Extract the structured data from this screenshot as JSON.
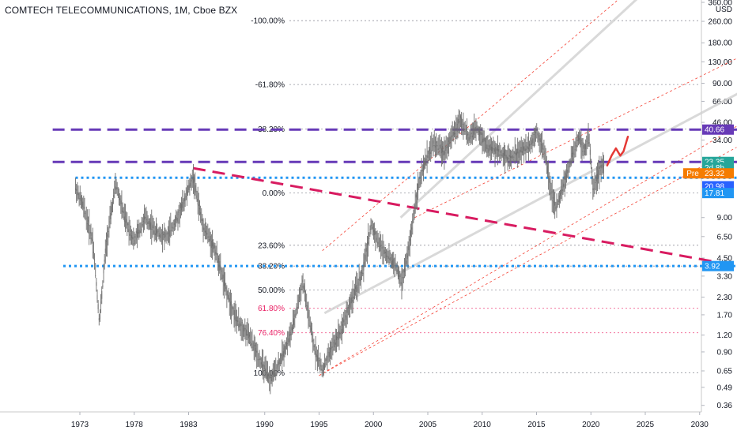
{
  "header": {
    "title": "COMTECH TELECOMMUNICATIONS, 1M, Cboe BZX"
  },
  "colors": {
    "candle": "#6f6f6f",
    "purple": "#673ab7",
    "blue": "#2196f3",
    "crimson": "#d81b60",
    "channel": "#f44336",
    "regression": "#d0d0d0",
    "arrow": "#e53935",
    "fib_neutral": "#787b86",
    "fib_red": "#e91e63"
  },
  "chart_data": {
    "type": "line",
    "title": "COMTECH TELECOMMUNICATIONS, 1M, Cboe BZX",
    "xlabel": "",
    "ylabel": "",
    "y_unit": "USD",
    "y_scale": "log",
    "xlim": [
      1970.5,
      2033.6
    ],
    "ylim": [
      0.36,
      360
    ],
    "x_ticks": [
      {
        "label": "1973",
        "value": 1973
      },
      {
        "label": "1978",
        "value": 1978
      },
      {
        "label": "1983",
        "value": 1983
      },
      {
        "label": "1990",
        "value": 1990
      },
      {
        "label": "1995",
        "value": 1995
      },
      {
        "label": "2000",
        "value": 2000
      },
      {
        "label": "2005",
        "value": 2005
      },
      {
        "label": "2010",
        "value": 2010
      },
      {
        "label": "2015",
        "value": 2015
      },
      {
        "label": "2020",
        "value": 2020
      },
      {
        "label": "2025",
        "value": 2025
      },
      {
        "label": "2030",
        "value": 2030
      }
    ],
    "y_ticks": [
      {
        "label": "360.00",
        "value": 360
      },
      {
        "label": "260.00",
        "value": 260
      },
      {
        "label": "180.00",
        "value": 180
      },
      {
        "label": "130.00",
        "value": 130
      },
      {
        "label": "90.00",
        "value": 90
      },
      {
        "label": "66.00",
        "value": 66
      },
      {
        "label": "46.00",
        "value": 46
      },
      {
        "label": "34.00",
        "value": 34
      },
      {
        "label": "9.00",
        "value": 9
      },
      {
        "label": "6.50",
        "value": 6.5
      },
      {
        "label": "4.50",
        "value": 4.5
      },
      {
        "label": "3.30",
        "value": 3.3
      },
      {
        "label": "2.30",
        "value": 2.3
      },
      {
        "label": "1.70",
        "value": 1.7
      },
      {
        "label": "1.20",
        "value": 1.2
      },
      {
        "label": "0.90",
        "value": 0.9
      },
      {
        "label": "0.65",
        "value": 0.65
      },
      {
        "label": "0.49",
        "value": 0.49
      },
      {
        "label": "0.36",
        "value": 0.36
      }
    ],
    "price_path": [
      [
        1972.6,
        15
      ],
      [
        1973.3,
        11
      ],
      [
        1974.2,
        6
      ],
      [
        1974.8,
        1.5
      ],
      [
        1975.4,
        5.5
      ],
      [
        1976.3,
        16
      ],
      [
        1977.1,
        9
      ],
      [
        1978.0,
        6
      ],
      [
        1979.0,
        9
      ],
      [
        1980.0,
        7
      ],
      [
        1981.0,
        6.5
      ],
      [
        1982.0,
        9
      ],
      [
        1983.4,
        18
      ],
      [
        1984.3,
        8
      ],
      [
        1985.5,
        5
      ],
      [
        1986.5,
        2.5
      ],
      [
        1987.5,
        1.5
      ],
      [
        1988.5,
        1.2
      ],
      [
        1989.5,
        0.8
      ],
      [
        1990.5,
        0.55
      ],
      [
        1991.5,
        0.8
      ],
      [
        1992.5,
        1.3
      ],
      [
        1993.5,
        3.0
      ],
      [
        1994.5,
        1.0
      ],
      [
        1995.3,
        0.65
      ],
      [
        1996.0,
        0.9
      ],
      [
        1997.0,
        1.3
      ],
      [
        1998.0,
        2.2
      ],
      [
        1999.0,
        3.5
      ],
      [
        1999.8,
        8.0
      ],
      [
        2000.4,
        6.0
      ],
      [
        2001.0,
        5.0
      ],
      [
        2002.0,
        4.0
      ],
      [
        2002.6,
        2.9
      ],
      [
        2003.3,
        5.5
      ],
      [
        2004.0,
        14
      ],
      [
        2004.8,
        24
      ],
      [
        2005.5,
        32
      ],
      [
        2006.5,
        28
      ],
      [
        2007.5,
        40
      ],
      [
        2008.0,
        48
      ],
      [
        2008.8,
        35
      ],
      [
        2009.5,
        42
      ],
      [
        2010.5,
        30
      ],
      [
        2011.5,
        28
      ],
      [
        2012.5,
        25
      ],
      [
        2013.5,
        28
      ],
      [
        2014.5,
        32
      ],
      [
        2015.0,
        40
      ],
      [
        2015.8,
        26
      ],
      [
        2016.5,
        12
      ],
      [
        2016.8,
        10.5
      ],
      [
        2017.5,
        16
      ],
      [
        2018.3,
        26
      ],
      [
        2018.9,
        36
      ],
      [
        2019.4,
        28
      ],
      [
        2019.8,
        36
      ],
      [
        2020.2,
        15
      ],
      [
        2020.8,
        20
      ],
      [
        2021.2,
        23.3
      ]
    ],
    "projection": [
      [
        2021.5,
        22
      ],
      [
        2021.9,
        26
      ],
      [
        2022.3,
        29.5
      ],
      [
        2022.7,
        26
      ],
      [
        2023.0,
        28
      ],
      [
        2023.4,
        36
      ]
    ],
    "horizontal_levels": [
      {
        "value": 40.66,
        "style": "dashed",
        "color": "purple",
        "x_from": 1970.5,
        "x_to": 2033.6
      },
      {
        "value": 23.35,
        "style": "dashed",
        "color": "purple",
        "x_from": 1970.5,
        "x_to": 2033.6
      },
      {
        "value": 17.81,
        "style": "dotted",
        "color": "blue",
        "x_from": 1972.6,
        "x_to": 2033.6
      },
      {
        "value": 3.92,
        "style": "dotted",
        "color": "blue",
        "x_from": 1968.3,
        "x_to": 2033.6
      }
    ],
    "trendlines": [
      {
        "name": "descending",
        "from": [
          1983.4,
          21
        ],
        "to": [
          2033.4,
          3.95
        ],
        "color": "crimson",
        "style": "dashed"
      }
    ],
    "fib_levels": [
      {
        "label": "-100.00%",
        "value": 263,
        "color": "neutral"
      },
      {
        "label": "-61.80%",
        "value": 88,
        "color": "neutral"
      },
      {
        "label": "-38.20%",
        "value": 41,
        "color": "neutral"
      },
      {
        "label": "0.00%",
        "value": 13.7,
        "color": "neutral"
      },
      {
        "label": "23.60%",
        "value": 5.6,
        "color": "neutral"
      },
      {
        "label": "38.20%",
        "value": 3.92,
        "color": "neutral"
      },
      {
        "label": "50.00%",
        "value": 2.6,
        "color": "neutral"
      },
      {
        "label": "61.80%",
        "value": 1.9,
        "color": "red"
      },
      {
        "label": "76.40%",
        "value": 1.25,
        "color": "red"
      },
      {
        "label": "100.00%",
        "value": 0.63,
        "color": "neutral"
      }
    ],
    "price_badges": [
      {
        "label": "40.66",
        "value": 40.66,
        "bg": "#673ab7"
      },
      {
        "label": "23.35",
        "value": 23.35,
        "bg": "#26a69a"
      },
      {
        "label": "2d 8h",
        "value": 21.2,
        "bg": "#26a69a"
      },
      {
        "label": "23.32",
        "prefix": "Pre",
        "value": 19.2,
        "bg": "#f57c00"
      },
      {
        "label": "20.98",
        "value": 15.4,
        "bg": "#2962ff"
      },
      {
        "label": "17.81",
        "value": 13.7,
        "bg": "#2196f3"
      },
      {
        "label": "3.92",
        "value": 3.92,
        "bg": "#2196f3"
      }
    ]
  }
}
